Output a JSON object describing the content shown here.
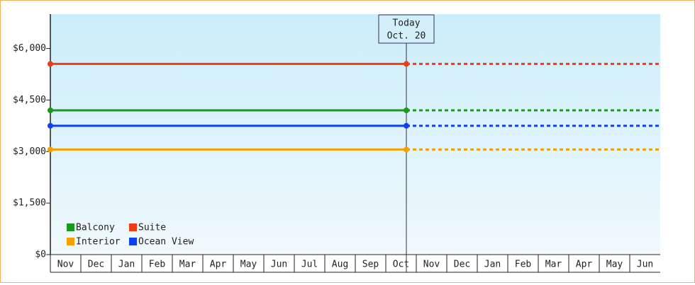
{
  "chart_data": {
    "type": "line",
    "categories": [
      "Nov",
      "Dec",
      "Jan",
      "Feb",
      "Mar",
      "Apr",
      "May",
      "Jun",
      "Jul",
      "Aug",
      "Sep",
      "Oct",
      "Nov",
      "Dec",
      "Jan",
      "Feb",
      "Mar",
      "Apr",
      "May",
      "Jun"
    ],
    "ylim": [
      0,
      7000
    ],
    "yticks": [
      {
        "value": 0,
        "label": "$0"
      },
      {
        "value": 1500,
        "label": "$1,500"
      },
      {
        "value": 3000,
        "label": "$3,000"
      },
      {
        "value": 4500,
        "label": "$4,500"
      },
      {
        "value": 6000,
        "label": "$6,000"
      }
    ],
    "today_label": [
      "Today",
      "Oct. 20"
    ],
    "series": [
      {
        "name": "Balcony",
        "color": "#1a9a1a",
        "value": 4200
      },
      {
        "name": "Suite",
        "color": "#f03c10",
        "value": 5550
      },
      {
        "name": "Interior",
        "color": "#f5a000",
        "value": 3060
      },
      {
        "name": "Ocean View",
        "color": "#1040f0",
        "value": 3750
      }
    ]
  }
}
